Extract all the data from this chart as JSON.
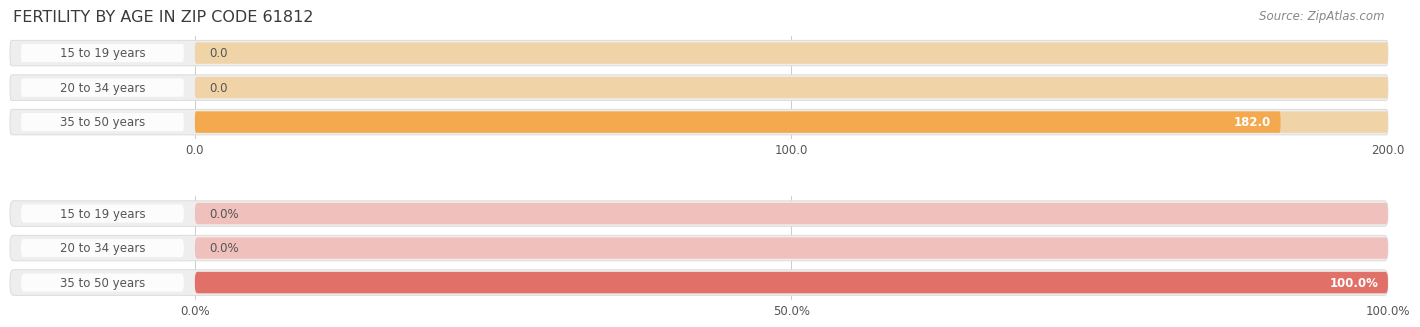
{
  "title": "FERTILITY BY AGE IN ZIP CODE 61812",
  "source": "Source: ZipAtlas.com",
  "top_chart": {
    "categories": [
      "15 to 19 years",
      "20 to 34 years",
      "35 to 50 years"
    ],
    "values": [
      0.0,
      0.0,
      182.0
    ],
    "x_max": 200.0,
    "xticks": [
      0.0,
      100.0,
      200.0
    ],
    "xtick_labels": [
      "0.0",
      "100.0",
      "200.0"
    ],
    "bar_color_full": "#F5A94E",
    "bar_color_empty": "#F0D4A8",
    "value_labels": [
      "0.0",
      "0.0",
      "182.0"
    ]
  },
  "bottom_chart": {
    "categories": [
      "15 to 19 years",
      "20 to 34 years",
      "35 to 50 years"
    ],
    "values": [
      0.0,
      0.0,
      100.0
    ],
    "x_max": 100.0,
    "xticks": [
      0.0,
      50.0,
      100.0
    ],
    "xtick_labels": [
      "0.0%",
      "50.0%",
      "100.0%"
    ],
    "bar_color_full": "#E07068",
    "bar_color_empty": "#F0C0BC",
    "value_labels": [
      "0.0%",
      "0.0%",
      "100.0%"
    ]
  },
  "title_color": "#3a3a3a",
  "label_color": "#555555",
  "source_color": "#888888",
  "bg_color": "#ffffff",
  "row_bg_color": "#eeeeee",
  "grid_color": "#cccccc",
  "title_fontsize": 11.5,
  "label_fontsize": 8.5,
  "value_fontsize": 8.5,
  "source_fontsize": 8.5
}
